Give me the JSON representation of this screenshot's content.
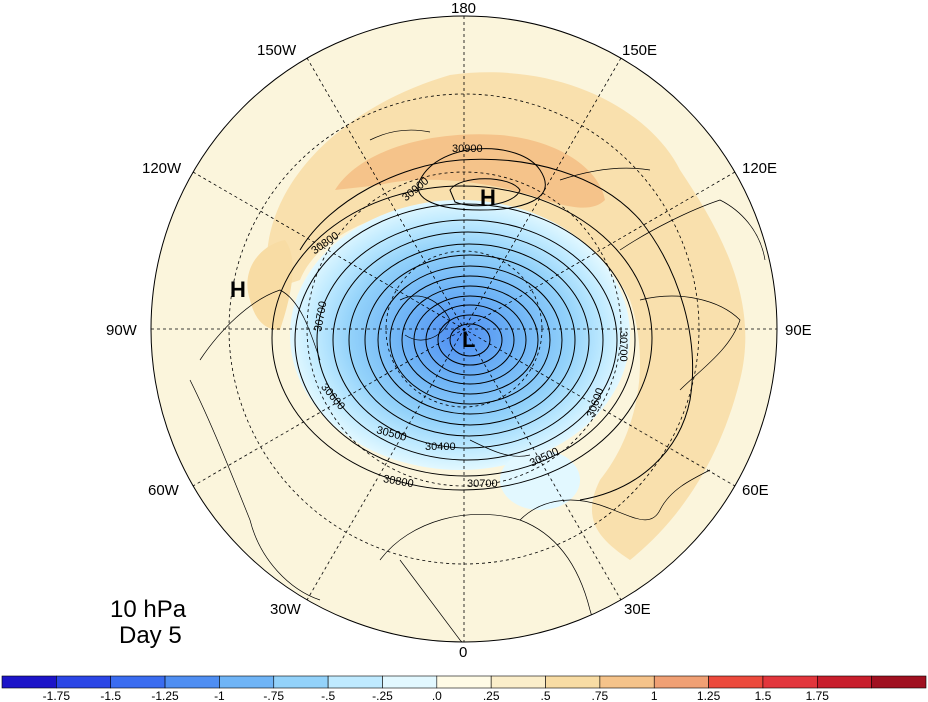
{
  "title": {
    "level": "10 hPa",
    "day": "Day 5"
  },
  "longitude_labels": [
    {
      "text": "180",
      "lon": 180
    },
    {
      "text": "150E",
      "lon": 150
    },
    {
      "text": "120E",
      "lon": 120
    },
    {
      "text": "90E",
      "lon": 90
    },
    {
      "text": "60E",
      "lon": 60
    },
    {
      "text": "30E",
      "lon": 30
    },
    {
      "text": "0",
      "lon": 0
    },
    {
      "text": "30W",
      "lon": -30
    },
    {
      "text": "60W",
      "lon": -60
    },
    {
      "text": "90W",
      "lon": -90
    },
    {
      "text": "120W",
      "lon": -120
    },
    {
      "text": "150W",
      "lon": -150
    }
  ],
  "pressure_centers": [
    {
      "type": "H",
      "text": "H",
      "location": "Bering Strait / Pacific"
    },
    {
      "type": "H",
      "text": "H",
      "location": "North America"
    },
    {
      "type": "L",
      "text": "L",
      "location": "Pole"
    }
  ],
  "contour_labels": [
    "30900",
    "30900",
    "30800",
    "30700",
    "30600",
    "30500",
    "30400",
    "30700",
    "30600",
    "30500",
    "30700",
    "30800"
  ],
  "colorbar": {
    "colors": [
      "#1c14c8",
      "#2b46e6",
      "#3a6cf0",
      "#4f8ef2",
      "#6fb4f6",
      "#93d2fa",
      "#bfeaff",
      "#e2f8ff",
      "#fffbe6",
      "#fbeeca",
      "#f8dca4",
      "#f5c38a",
      "#f0a074",
      "#ec4a3c",
      "#e2363c",
      "#c81e2c",
      "#a01020"
    ],
    "labels": [
      "-1.75",
      "-1.5",
      "-1.25",
      "-1",
      "-.75",
      "-.5",
      "-.25",
      ".0",
      ".25",
      ".5",
      ".75",
      "1",
      "1.25",
      "1.5",
      "1.75"
    ]
  }
}
